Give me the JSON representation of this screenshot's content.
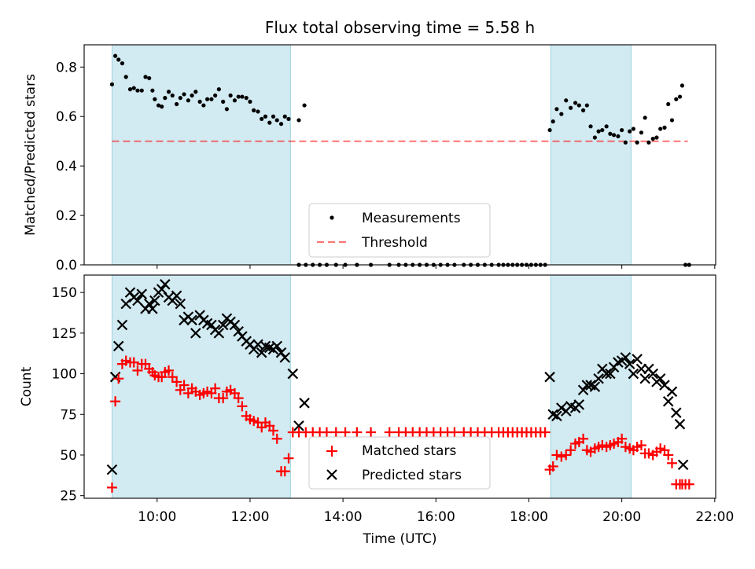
{
  "colors": {
    "observing_band": "#add8e6",
    "threshold": "#ff0000",
    "matched": "#ff0000",
    "predicted": "#000000",
    "measurements": "#000000"
  },
  "chart_data": [
    {
      "type": "scatter",
      "title": "Flux total observing time = 5.58 h",
      "ylabel": "Matched/Predicted stars",
      "ylim": [
        0,
        0.89
      ],
      "xlim_hours": [
        8.43,
        22.02
      ],
      "yticks": [
        0.0,
        0.2,
        0.4,
        0.6,
        0.8
      ],
      "ytick_labels": [
        "0.0",
        "0.2",
        "0.4",
        "0.6",
        "0.8"
      ],
      "shaded_intervals_hours": [
        [
          9.03,
          12.87
        ],
        [
          18.47,
          20.2
        ]
      ],
      "threshold": {
        "label": "Threshold",
        "value": 0.5,
        "x_range_hours": [
          9.03,
          21.42
        ]
      },
      "legend": {
        "location": "lower-center",
        "entries": [
          "Measurements",
          "Threshold"
        ]
      },
      "measurements": {
        "name": "Measurements",
        "x_hours": [
          9.03,
          9.1,
          9.17,
          9.25,
          9.33,
          9.42,
          9.5,
          9.58,
          9.67,
          9.75,
          9.83,
          9.9,
          9.95,
          10.03,
          10.1,
          10.17,
          10.25,
          10.33,
          10.42,
          10.5,
          10.58,
          10.67,
          10.75,
          10.83,
          10.92,
          11.0,
          11.08,
          11.17,
          11.25,
          11.33,
          11.42,
          11.5,
          11.58,
          11.67,
          11.75,
          11.83,
          11.92,
          12.0,
          12.08,
          12.17,
          12.25,
          12.33,
          12.42,
          12.5,
          12.58,
          12.67,
          12.75,
          12.83,
          13.05,
          13.17,
          13.05,
          13.2,
          13.35,
          13.5,
          13.65,
          13.85,
          14.05,
          14.3,
          14.6,
          15.0,
          15.2,
          15.35,
          15.5,
          15.65,
          15.8,
          15.95,
          16.1,
          16.25,
          16.4,
          16.6,
          16.75,
          16.9,
          17.05,
          17.2,
          17.35,
          17.45,
          17.55,
          17.65,
          17.75,
          17.85,
          17.95,
          18.05,
          18.15,
          18.25,
          18.35,
          18.45,
          18.52,
          18.6,
          18.7,
          18.8,
          18.9,
          19.0,
          19.08,
          19.17,
          19.25,
          19.33,
          19.42,
          19.5,
          19.58,
          19.67,
          19.75,
          19.83,
          19.92,
          20.0,
          20.08,
          20.17,
          20.25,
          20.33,
          20.42,
          20.5,
          20.58,
          20.67,
          20.75,
          20.83,
          20.92,
          21.0,
          21.08,
          21.17,
          21.25,
          21.3,
          21.37,
          21.45
        ],
        "y": [
          0.73,
          0.845,
          0.83,
          0.815,
          0.76,
          0.71,
          0.715,
          0.705,
          0.705,
          0.76,
          0.755,
          0.705,
          0.67,
          0.645,
          0.64,
          0.675,
          0.7,
          0.685,
          0.65,
          0.675,
          0.69,
          0.665,
          0.685,
          0.7,
          0.66,
          0.645,
          0.67,
          0.67,
          0.685,
          0.71,
          0.66,
          0.63,
          0.685,
          0.665,
          0.68,
          0.68,
          0.675,
          0.66,
          0.625,
          0.62,
          0.59,
          0.6,
          0.575,
          0.6,
          0.585,
          0.57,
          0.6,
          0.59,
          0.585,
          0.645,
          0,
          0,
          0,
          0,
          0,
          0,
          0,
          0,
          0,
          0,
          0,
          0,
          0,
          0,
          0,
          0,
          0,
          0,
          0,
          0,
          0,
          0,
          0,
          0,
          0,
          0,
          0,
          0,
          0,
          0,
          0,
          0,
          0,
          0,
          0,
          0.545,
          0.58,
          0.63,
          0.61,
          0.665,
          0.635,
          0.655,
          0.645,
          0.625,
          0.645,
          0.56,
          0.515,
          0.54,
          0.545,
          0.56,
          0.53,
          0.525,
          0.52,
          0.545,
          0.495,
          0.54,
          0.55,
          0.495,
          0.535,
          0.595,
          0.495,
          0.51,
          0.515,
          0.55,
          0.555,
          0.65,
          0.585,
          0.67,
          0.68,
          0.725,
          0.0,
          0.0
        ]
      }
    },
    {
      "type": "scatter",
      "xlabel": "Time (UTC)",
      "ylabel": "Count",
      "ylim": [
        23.4,
        160.7
      ],
      "xlim_hours": [
        8.43,
        22.02
      ],
      "xticks_hours": [
        10,
        12,
        14,
        16,
        18,
        20,
        22
      ],
      "xtick_labels": [
        "10:00",
        "12:00",
        "14:00",
        "16:00",
        "18:00",
        "20:00",
        "22:00"
      ],
      "yticks": [
        25,
        50,
        75,
        100,
        125,
        150
      ],
      "ytick_labels": [
        "25",
        "50",
        "75",
        "100",
        "125",
        "150"
      ],
      "shaded_intervals_hours": [
        [
          9.03,
          12.87
        ],
        [
          18.47,
          20.2
        ]
      ],
      "legend": {
        "location": "lower-center",
        "entries": [
          "Matched stars",
          "Predicted stars"
        ]
      },
      "series": [
        {
          "name": "Matched stars",
          "marker": "+",
          "x_hours": [
            9.03,
            9.1,
            9.17,
            9.25,
            9.33,
            9.42,
            9.5,
            9.58,
            9.67,
            9.75,
            9.83,
            9.9,
            9.95,
            10.03,
            10.1,
            10.17,
            10.25,
            10.33,
            10.42,
            10.5,
            10.58,
            10.67,
            10.75,
            10.83,
            10.92,
            11.0,
            11.08,
            11.17,
            11.25,
            11.33,
            11.42,
            11.5,
            11.58,
            11.67,
            11.75,
            11.83,
            11.92,
            12.0,
            12.08,
            12.17,
            12.25,
            12.33,
            12.42,
            12.5,
            12.58,
            12.67,
            12.75,
            12.83,
            12.92,
            13.05,
            13.2,
            13.35,
            13.5,
            13.65,
            13.85,
            14.05,
            14.3,
            14.6,
            15.0,
            15.2,
            15.35,
            15.5,
            15.65,
            15.8,
            15.95,
            16.1,
            16.25,
            16.4,
            16.6,
            16.75,
            16.9,
            17.05,
            17.2,
            17.35,
            17.45,
            17.55,
            17.65,
            17.75,
            17.85,
            17.95,
            18.05,
            18.15,
            18.25,
            18.35,
            18.45,
            18.52,
            18.6,
            18.7,
            18.8,
            18.9,
            19.0,
            19.08,
            19.17,
            19.25,
            19.33,
            19.42,
            19.5,
            19.58,
            19.67,
            19.75,
            19.83,
            19.92,
            20.0,
            20.08,
            20.17,
            20.25,
            20.33,
            20.42,
            20.5,
            20.58,
            20.67,
            20.75,
            20.83,
            20.92,
            21.0,
            21.08,
            21.17,
            21.25,
            21.3,
            21.37,
            21.45
          ],
          "values": [
            30,
            83,
            97,
            106,
            108,
            107,
            107,
            102,
            106,
            106,
            103,
            101,
            99,
            98,
            98,
            101,
            102,
            98,
            95,
            90,
            93,
            88,
            91,
            89,
            87,
            88,
            89,
            88,
            91,
            85,
            85,
            89,
            90,
            88,
            85,
            80,
            74,
            72,
            71,
            70,
            67,
            70,
            68,
            65,
            60,
            40,
            40,
            48,
            64,
            64,
            64,
            64,
            64,
            64,
            64,
            64,
            64,
            64,
            64,
            64,
            64,
            64,
            64,
            64,
            64,
            64,
            64,
            64,
            64,
            64,
            64,
            64,
            64,
            64,
            64,
            64,
            64,
            64,
            64,
            64,
            64,
            64,
            64,
            64,
            41,
            43,
            50,
            49,
            50,
            53,
            57,
            58,
            60,
            53,
            52,
            54,
            55,
            56,
            55,
            56,
            57,
            58,
            60,
            55,
            54,
            53,
            55,
            56,
            51,
            51,
            50,
            52,
            54,
            53,
            50,
            45,
            32,
            32,
            32,
            32,
            32
          ]
        },
        {
          "name": "Predicted stars",
          "marker": "x",
          "x_hours": [
            9.03,
            9.1,
            9.17,
            9.25,
            9.33,
            9.42,
            9.5,
            9.58,
            9.67,
            9.75,
            9.83,
            9.9,
            9.95,
            10.03,
            10.1,
            10.17,
            10.25,
            10.33,
            10.42,
            10.5,
            10.58,
            10.67,
            10.75,
            10.83,
            10.92,
            11.0,
            11.08,
            11.17,
            11.25,
            11.33,
            11.42,
            11.5,
            11.58,
            11.67,
            11.75,
            11.83,
            11.92,
            12.0,
            12.08,
            12.17,
            12.25,
            12.33,
            12.42,
            12.5,
            12.58,
            12.67,
            12.75,
            12.92,
            13.05,
            13.17,
            18.45,
            18.52,
            18.6,
            18.7,
            18.8,
            18.9,
            19.0,
            19.08,
            19.17,
            19.25,
            19.33,
            19.42,
            19.5,
            19.58,
            19.67,
            19.75,
            19.83,
            19.92,
            20.0,
            20.08,
            20.17,
            20.25,
            20.33,
            20.42,
            20.5,
            20.58,
            20.67,
            20.75,
            20.83,
            20.92,
            21.0,
            21.08,
            21.17,
            21.25,
            21.32
          ],
          "values": [
            41,
            98,
            117,
            130,
            143,
            150,
            147,
            145,
            149,
            140,
            143,
            140,
            145,
            150,
            152,
            155,
            147,
            145,
            148,
            143,
            133,
            135,
            133,
            125,
            136,
            133,
            131,
            130,
            127,
            125,
            130,
            134,
            132,
            130,
            126,
            123,
            120,
            118,
            115,
            118,
            113,
            117,
            116,
            115,
            117,
            113,
            110,
            100,
            68,
            82,
            98,
            75,
            74,
            79,
            77,
            80,
            79,
            81,
            90,
            93,
            93,
            92,
            97,
            103,
            100,
            100,
            104,
            107,
            108,
            110,
            106,
            100,
            109,
            103,
            97,
            103,
            100,
            95,
            97,
            93,
            83,
            89,
            76,
            69,
            44
          ]
        }
      ]
    }
  ]
}
